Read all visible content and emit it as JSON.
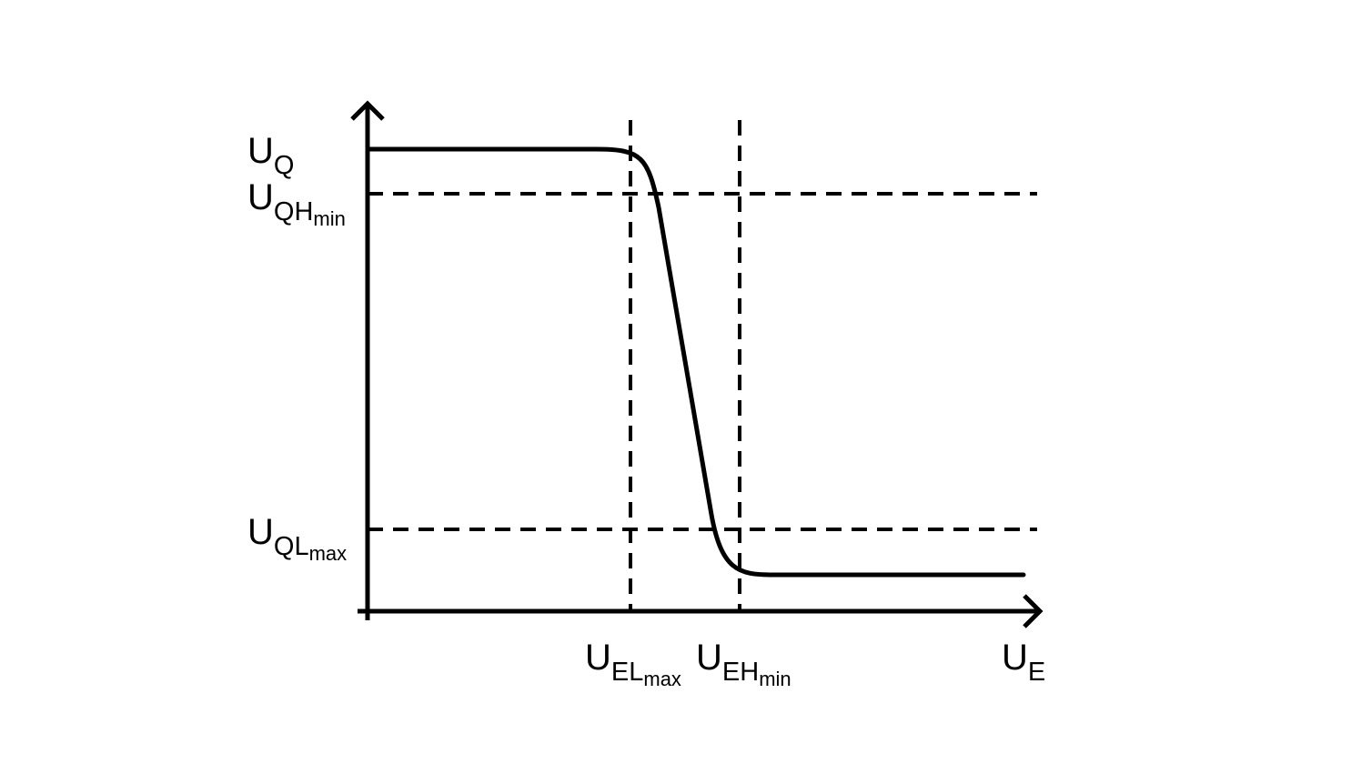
{
  "diagram": {
    "stroke_color": "#000000",
    "background": "#ffffff",
    "y_axis": {
      "main": "U",
      "sub": "Q"
    },
    "x_axis": {
      "main": "U",
      "sub": "E"
    },
    "y_levels": [
      {
        "main": "U",
        "sub": "QH",
        "subsub": "min"
      },
      {
        "main": "U",
        "sub": "QL",
        "subsub": "max"
      }
    ],
    "x_levels": [
      {
        "main": "U",
        "sub": "EL",
        "subsub": "max"
      },
      {
        "main": "U",
        "sub": "EH",
        "subsub": "min"
      }
    ]
  }
}
